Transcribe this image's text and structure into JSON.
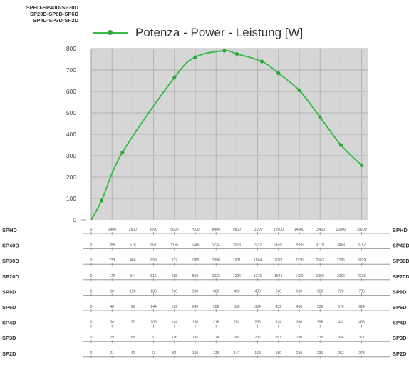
{
  "header": {
    "models": [
      "SPHD-SP40D-SP30D",
      "SP20D-SP8D-SP6D",
      "SP4D-SP3D-SP2D"
    ]
  },
  "legend": {
    "label": "Potenza - Power - Leistung [W]",
    "color": "#3dbb49"
  },
  "chart_data": {
    "type": "line",
    "title": "",
    "xlabel": "",
    "ylabel": "",
    "ylim": [
      0,
      800
    ],
    "yticks": [
      0,
      100,
      200,
      300,
      400,
      500,
      600,
      700,
      800
    ],
    "grid": true,
    "legend_position": "top",
    "series": [
      {
        "name": "Potenza - Power - Leistung [W]",
        "x": [
          0,
          0.5,
          1.5,
          4,
          5,
          6.4,
          7,
          8.2,
          9,
          10,
          11,
          12,
          13
        ],
        "y": [
          0,
          90,
          315,
          665,
          760,
          790,
          775,
          740,
          685,
          605,
          480,
          350,
          255
        ]
      }
    ],
    "rpm_tables": [
      {
        "name": "SPHD",
        "values": [
          "0",
          "1400",
          "2800",
          "4200",
          "5600",
          "7000",
          "8400",
          "9800",
          "11200",
          "12600",
          "14000",
          "15400",
          "16800",
          "18200"
        ]
      },
      {
        "name": "SP40D",
        "values": [
          "0",
          "289",
          "578",
          "867",
          "1156",
          "1445",
          "1734",
          "2023",
          "2312",
          "2601",
          "2890",
          "3179",
          "3468",
          "3757"
        ]
      },
      {
        "name": "SP30D",
        "values": [
          "0",
          "233",
          "466",
          "699",
          "932",
          "1165",
          "1398",
          "1631",
          "1864",
          "2097",
          "2330",
          "2563",
          "2796",
          "3029"
        ]
      },
      {
        "name": "SP20D",
        "values": [
          "0",
          "172",
          "344",
          "516",
          "688",
          "860",
          "1032",
          "1204",
          "1376",
          "1548",
          "1720",
          "1892",
          "2064",
          "2236"
        ]
      },
      {
        "name": "SP8D",
        "values": [
          "0",
          "60",
          "120",
          "180",
          "240",
          "300",
          "360",
          "420",
          "480",
          "540",
          "600",
          "660",
          "720",
          "780"
        ]
      },
      {
        "name": "SP6D",
        "values": [
          "0",
          "48",
          "96",
          "144",
          "192",
          "240",
          "288",
          "336",
          "384",
          "432",
          "480",
          "528",
          "576",
          "624"
        ]
      },
      {
        "name": "SP4D",
        "values": [
          "0",
          "36",
          "72",
          "108",
          "144",
          "180",
          "216",
          "252",
          "288",
          "324",
          "360",
          "396",
          "432",
          "468"
        ]
      },
      {
        "name": "SP3D",
        "values": [
          "0",
          "29",
          "58",
          "87",
          "116",
          "145",
          "174",
          "203",
          "232",
          "261",
          "290",
          "319",
          "348",
          "377"
        ]
      },
      {
        "name": "SP2D",
        "values": [
          "0",
          "21",
          "42",
          "63",
          "84",
          "105",
          "126",
          "147",
          "168",
          "189",
          "210",
          "231",
          "252",
          "273"
        ]
      }
    ]
  }
}
